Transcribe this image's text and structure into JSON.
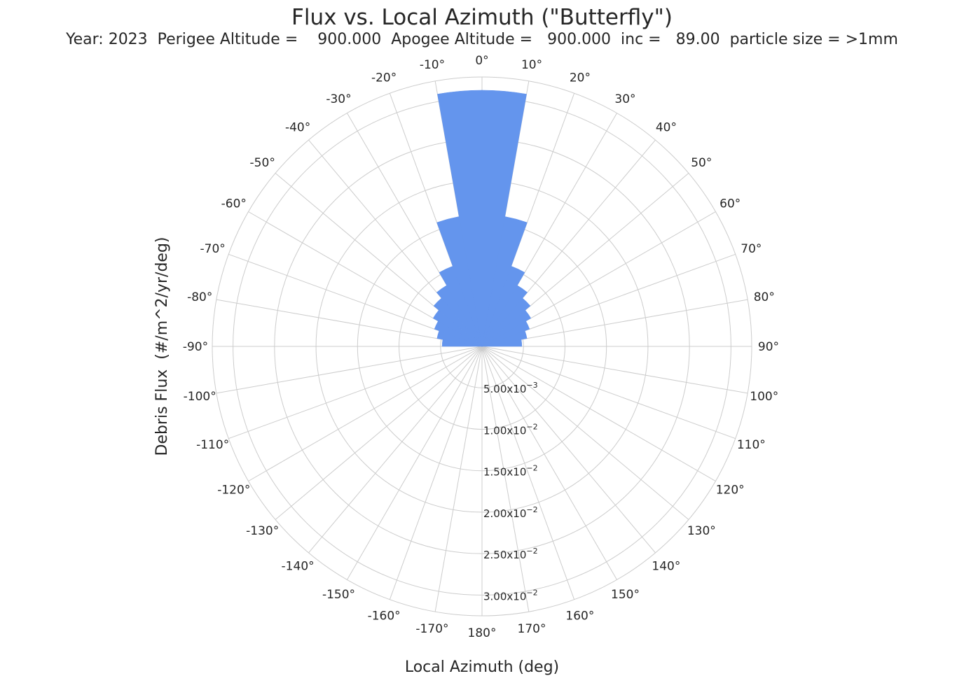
{
  "chart_data": {
    "type": "polar-bar",
    "title": "Flux  vs. Local Azimuth (\"Butterfly\")",
    "subtitle": "Year: 2023  Perigee Altitude =    900.000  Apogee Altitude =   900.000  inc =   89.00  particle size = >1mm",
    "xlabel": "Local Azimuth (deg)",
    "ylabel": "Debris Flux  (#/m^2/yr/deg)",
    "theta_zero": "top",
    "theta_direction": "clockwise",
    "r_lim": [
      0,
      0.0325
    ],
    "grid": true,
    "theta_ticks": [
      {
        "deg": 0,
        "label": "0°"
      },
      {
        "deg": 10,
        "label": "10°"
      },
      {
        "deg": 20,
        "label": "20°"
      },
      {
        "deg": 30,
        "label": "30°"
      },
      {
        "deg": 40,
        "label": "40°"
      },
      {
        "deg": 50,
        "label": "50°"
      },
      {
        "deg": 60,
        "label": "60°"
      },
      {
        "deg": 70,
        "label": "70°"
      },
      {
        "deg": 80,
        "label": "80°"
      },
      {
        "deg": 90,
        "label": "90°"
      },
      {
        "deg": 100,
        "label": "100°"
      },
      {
        "deg": 110,
        "label": "110°"
      },
      {
        "deg": 120,
        "label": "120°"
      },
      {
        "deg": 130,
        "label": "130°"
      },
      {
        "deg": 140,
        "label": "140°"
      },
      {
        "deg": 150,
        "label": "150°"
      },
      {
        "deg": 160,
        "label": "160°"
      },
      {
        "deg": 170,
        "label": "170°"
      },
      {
        "deg": 180,
        "label": "180°"
      },
      {
        "deg": -170,
        "label": "-170°"
      },
      {
        "deg": -160,
        "label": "-160°"
      },
      {
        "deg": -150,
        "label": "-150°"
      },
      {
        "deg": -140,
        "label": "-140°"
      },
      {
        "deg": -130,
        "label": "-130°"
      },
      {
        "deg": -120,
        "label": "-120°"
      },
      {
        "deg": -110,
        "label": "-110°"
      },
      {
        "deg": -100,
        "label": "-100°"
      },
      {
        "deg": -90,
        "label": "-90°"
      },
      {
        "deg": -80,
        "label": "-80°"
      },
      {
        "deg": -70,
        "label": "-70°"
      },
      {
        "deg": -60,
        "label": "-60°"
      },
      {
        "deg": -50,
        "label": "-50°"
      },
      {
        "deg": -40,
        "label": "-40°"
      },
      {
        "deg": -30,
        "label": "-30°"
      },
      {
        "deg": -20,
        "label": "-20°"
      },
      {
        "deg": -10,
        "label": "-10°"
      }
    ],
    "r_ticks": [
      {
        "value": 0.005,
        "mantissa": "5.00x10",
        "exp": "−3"
      },
      {
        "value": 0.01,
        "mantissa": "1.00x10",
        "exp": "−2"
      },
      {
        "value": 0.015,
        "mantissa": "1.50x10",
        "exp": "−2"
      },
      {
        "value": 0.02,
        "mantissa": "2.00x10",
        "exp": "−2"
      },
      {
        "value": 0.025,
        "mantissa": "2.50x10",
        "exp": "−2"
      },
      {
        "value": 0.03,
        "mantissa": "3.00x10",
        "exp": "−2"
      }
    ],
    "bar_color": "#6495ed",
    "bins": [
      {
        "from": 0,
        "to": 10,
        "value": 0.0309
      },
      {
        "from": 10,
        "to": 20,
        "value": 0.0159
      },
      {
        "from": 20,
        "to": 30,
        "value": 0.0103
      },
      {
        "from": 30,
        "to": 40,
        "value": 0.0085
      },
      {
        "from": 40,
        "to": 50,
        "value": 0.0076
      },
      {
        "from": 50,
        "to": 60,
        "value": 0.0068
      },
      {
        "from": 60,
        "to": 70,
        "value": 0.0061
      },
      {
        "from": 70,
        "to": 80,
        "value": 0.0055
      },
      {
        "from": 80,
        "to": 90,
        "value": 0.0048
      },
      {
        "from": -10,
        "to": 0,
        "value": 0.0309
      },
      {
        "from": -20,
        "to": -10,
        "value": 0.0159
      },
      {
        "from": -30,
        "to": -20,
        "value": 0.0103
      },
      {
        "from": -40,
        "to": -30,
        "value": 0.0085
      },
      {
        "from": -50,
        "to": -40,
        "value": 0.0076
      },
      {
        "from": -60,
        "to": -50,
        "value": 0.0068
      },
      {
        "from": -70,
        "to": -60,
        "value": 0.0061
      },
      {
        "from": -80,
        "to": -70,
        "value": 0.0055
      },
      {
        "from": -90,
        "to": -80,
        "value": 0.0048
      }
    ]
  }
}
